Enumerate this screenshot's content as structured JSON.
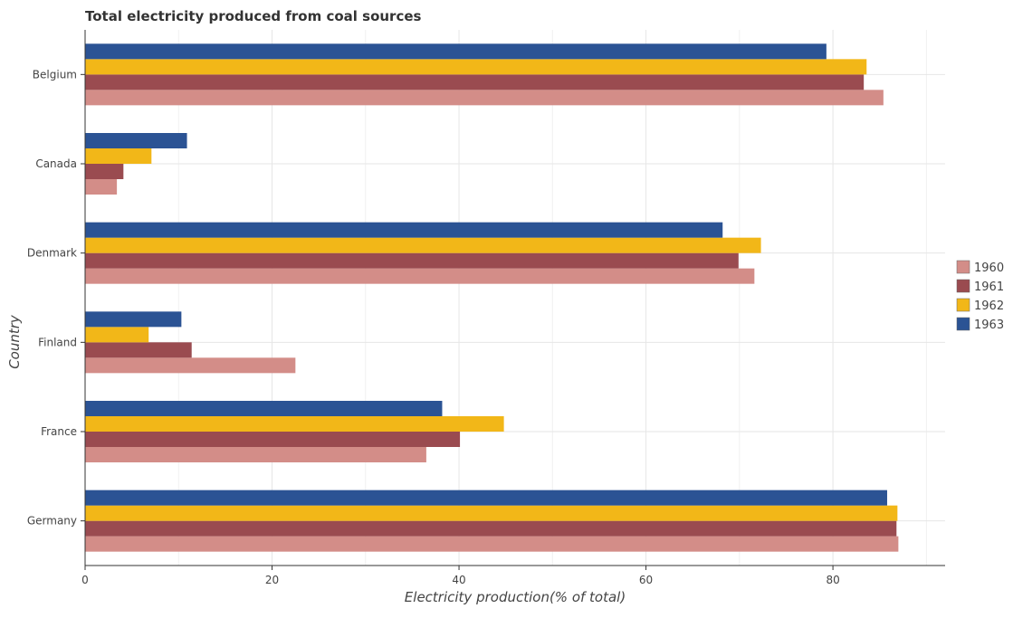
{
  "chart_data": {
    "type": "bar",
    "orientation": "horizontal",
    "title": "Total electricity produced from coal sources",
    "xlabel": "Electricity production(% of total)",
    "ylabel": "Country",
    "categories": [
      "Belgium",
      "Canada",
      "Denmark",
      "Finland",
      "France",
      "Germany"
    ],
    "xlim": [
      0,
      92
    ],
    "xticks": [
      0,
      20,
      40,
      60,
      80
    ],
    "grid": true,
    "legend_position": "right",
    "series": [
      {
        "name": "1960",
        "color": "#d38d88",
        "values": [
          85.4,
          3.4,
          71.6,
          22.5,
          36.5,
          87.0
        ]
      },
      {
        "name": "1961",
        "color": "#9a4b50",
        "values": [
          83.3,
          4.1,
          69.9,
          11.4,
          40.1,
          86.8
        ]
      },
      {
        "name": "1962",
        "color": "#f2b718",
        "values": [
          83.6,
          7.1,
          72.3,
          6.8,
          44.8,
          86.9
        ]
      },
      {
        "name": "1963",
        "color": "#2b5394",
        "values": [
          79.3,
          10.9,
          68.2,
          10.3,
          38.2,
          85.8
        ]
      }
    ]
  }
}
